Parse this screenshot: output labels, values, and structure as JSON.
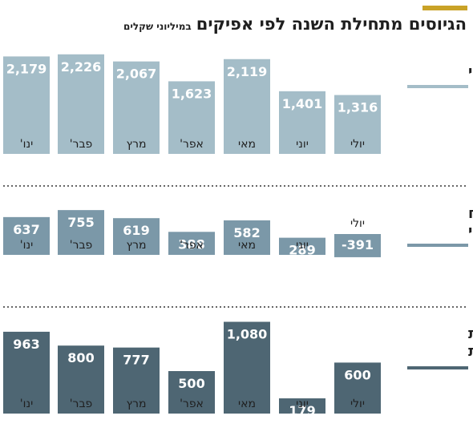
{
  "title": "הגיוסים מתחילת השנה לפי אפיקים",
  "subtitle": "במיליוני שקלים",
  "colors": {
    "accent": "#c9a227",
    "text": "#1f1f1f"
  },
  "chart_data": [
    {
      "type": "bar",
      "panel_label": [
        "אג\"ח כללי"
      ],
      "categories": [
        "ינו'",
        "פבר'",
        "מרץ",
        "אפר'",
        "מאי",
        "יוני",
        "יולי"
      ],
      "values": [
        2179,
        2226,
        2067,
        1623,
        2119,
        1401,
        1316
      ],
      "value_labels": [
        "2,179",
        "2,226",
        "2,067",
        "1,623",
        "2,119",
        "1,401",
        "1,316"
      ],
      "color": "#a4bdc8",
      "underline_color": "#a4bdc8"
    },
    {
      "type": "bar",
      "panel_label": [
        "אג\"ח",
        "קונצרני"
      ],
      "categories": [
        "ינו'",
        "פבר'",
        "מרץ",
        "אפר'",
        "מאי",
        "יוני",
        "יולי"
      ],
      "values": [
        637,
        755,
        619,
        388,
        582,
        289,
        -391
      ],
      "value_labels": [
        "637",
        "755",
        "619",
        "388",
        "582",
        "289",
        "-391"
      ],
      "color": "#7b98a8",
      "underline_color": "#7b98a8"
    },
    {
      "type": "bar",
      "panel_label": [
        "קרנות",
        "מנייתיות"
      ],
      "categories": [
        "ינו'",
        "פבר'",
        "מרץ",
        "אפר'",
        "מאי",
        "יוני",
        "יולי"
      ],
      "values": [
        963,
        800,
        777,
        500,
        1080,
        179,
        600
      ],
      "value_labels": [
        "963",
        "800",
        "777",
        "500",
        "1,080",
        "179",
        "600"
      ],
      "color": "#4e6673",
      "underline_color": "#4e6673"
    }
  ]
}
